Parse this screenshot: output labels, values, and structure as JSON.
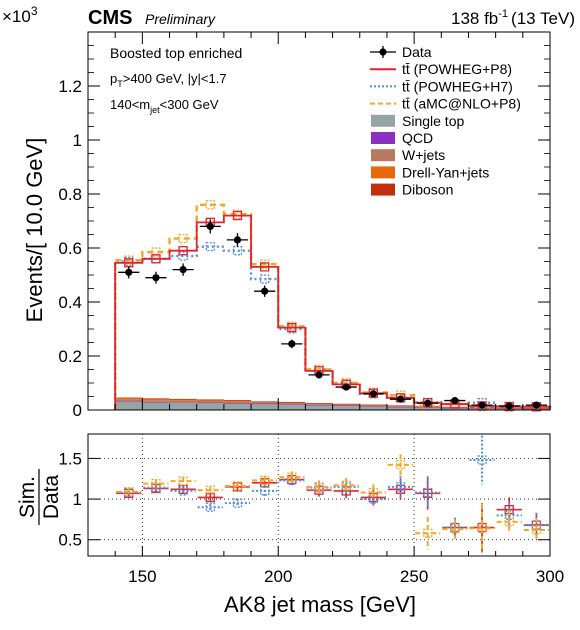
{
  "header": {
    "exponent_label": "×10",
    "exponent_power": "3",
    "experiment": "CMS",
    "status": "Preliminary",
    "lumi": "138 fb",
    "lumi_power": "-1",
    "energy": "(13 TeV)"
  },
  "annotations": {
    "line1": "Boosted top enriched",
    "line2_a": "p",
    "line2_sub": "T",
    "line2_b": ">400 GeV, |y|<1.7",
    "line3_a": "140<m",
    "line3_sub": "jet",
    "line3_b": "<300 GeV"
  },
  "legend": [
    {
      "label": "Data",
      "style": "data",
      "color": "#000000"
    },
    {
      "label": "tt̄ (POWHEG+P8)",
      "style": "line",
      "color": "#e0242f"
    },
    {
      "label": "tt̄ (POWHEG+H7)",
      "style": "dotted",
      "color": "#4a90e2"
    },
    {
      "label": "tt̄ (aMC@NLO+P8)",
      "style": "dashed",
      "color": "#f5a623"
    },
    {
      "label": "Single top",
      "style": "fill",
      "color": "#95a5a6"
    },
    {
      "label": "QCD",
      "style": "fill",
      "color": "#8e2fc4"
    },
    {
      "label": "W+jets",
      "style": "fill",
      "color": "#b87a5f"
    },
    {
      "label": "Drell-Yan+jets",
      "style": "fill",
      "color": "#e8680c"
    },
    {
      "label": "Diboson",
      "style": "fill",
      "color": "#c0300f"
    }
  ],
  "chart_data": [
    {
      "type": "bar",
      "title": "",
      "xlabel": "AK8 jet mass [GeV]",
      "ylabel": "Events/[ 10.0 GeV]",
      "xlim": [
        130,
        300
      ],
      "ylim": [
        0,
        1.4
      ],
      "y_scale_note": "×10^3",
      "x_ticks": [
        150,
        200,
        250,
        300
      ],
      "y_ticks": [
        0,
        0.2,
        0.4,
        0.6,
        0.8,
        1,
        1.2
      ],
      "y_tick_labels": [
        "0",
        "0.2",
        "0.4",
        "0.6",
        "0.8",
        "1",
        "1.2"
      ],
      "bin_edges": [
        140,
        150,
        160,
        170,
        180,
        190,
        200,
        210,
        220,
        230,
        240,
        250,
        260,
        270,
        280,
        290,
        300
      ],
      "series": [
        {
          "name": "Data",
          "values": [
            0.51,
            0.49,
            0.52,
            0.68,
            0.63,
            0.44,
            0.245,
            0.13,
            0.085,
            0.06,
            0.04,
            0.025,
            0.035,
            0.018,
            0.015,
            0.018
          ]
        },
        {
          "name": "tt̄ (POWHEG+P8)",
          "values": [
            0.545,
            0.56,
            0.59,
            0.695,
            0.72,
            0.53,
            0.305,
            0.145,
            0.095,
            0.062,
            0.045,
            0.027,
            0.022,
            0.015,
            0.013,
            0.012
          ]
        },
        {
          "name": "tt̄ (POWHEG+H7)",
          "values": [
            0.55,
            0.56,
            0.57,
            0.605,
            0.59,
            0.485,
            0.3,
            0.15,
            0.1,
            0.06,
            0.045,
            0.028,
            0.022,
            0.027,
            0.012,
            0.012
          ]
        },
        {
          "name": "tt̄ (aMC@NLO+P8)",
          "values": [
            0.555,
            0.585,
            0.635,
            0.76,
            0.725,
            0.54,
            0.31,
            0.15,
            0.1,
            0.065,
            0.055,
            0.015,
            0.022,
            0.012,
            0.011,
            0.012
          ]
        },
        {
          "name": "Single top",
          "values": [
            0.03,
            0.028,
            0.027,
            0.026,
            0.024,
            0.022,
            0.02,
            0.018,
            0.016,
            0.013,
            0.011,
            0.009,
            0.007,
            0.006,
            0.005,
            0.004
          ]
        },
        {
          "name": "QCD",
          "values": [
            0.002,
            0.002,
            0.002,
            0.002,
            0.002,
            0.002,
            0.002,
            0.001,
            0.001,
            0.001,
            0.001,
            0.001,
            0.001,
            0.001,
            0.001,
            0.001
          ]
        },
        {
          "name": "W+jets",
          "values": [
            0.006,
            0.006,
            0.005,
            0.005,
            0.005,
            0.004,
            0.004,
            0.004,
            0.003,
            0.003,
            0.003,
            0.002,
            0.002,
            0.002,
            0.002,
            0.001
          ]
        },
        {
          "name": "Drell-Yan+jets",
          "values": [
            0.006,
            0.005,
            0.005,
            0.004,
            0.004,
            0.003,
            0.003,
            0.002,
            0.002,
            0.002,
            0.001,
            0.001,
            0.001,
            0.001,
            0.001,
            0.001
          ]
        },
        {
          "name": "Diboson",
          "values": [
            0.002,
            0.002,
            0.002,
            0.002,
            0.002,
            0.001,
            0.001,
            0.001,
            0.001,
            0.001,
            0.001,
            0.001,
            0.001,
            0.001,
            0.001,
            0.001
          ]
        }
      ]
    },
    {
      "type": "scatter",
      "title": "",
      "xlabel": "AK8 jet mass [GeV]",
      "ylabel_num": "Sim.",
      "ylabel_den": "Data",
      "xlim": [
        130,
        300
      ],
      "ylim": [
        0.3,
        1.8
      ],
      "x_ticks": [
        150,
        200,
        250,
        300
      ],
      "y_ticks": [
        0.5,
        1,
        1.5
      ],
      "y_tick_labels": [
        "0.5",
        "1",
        "1.5"
      ],
      "bin_edges": [
        140,
        150,
        160,
        170,
        180,
        190,
        200,
        210,
        220,
        230,
        240,
        250,
        260,
        270,
        280,
        290,
        300
      ],
      "series": [
        {
          "name": "tt̄ (POWHEG+P8)",
          "values": [
            1.07,
            1.13,
            1.12,
            1.02,
            1.15,
            1.2,
            1.24,
            1.11,
            1.1,
            1.02,
            1.12,
            1.07,
            0.65,
            0.65,
            0.87,
            0.68
          ]
        },
        {
          "name": "tt̄ (POWHEG+H7)",
          "values": [
            1.08,
            1.14,
            1.1,
            0.9,
            0.95,
            1.1,
            1.23,
            1.14,
            1.15,
            1.0,
            1.15,
            1.08,
            0.65,
            1.48,
            0.8,
            0.68
          ]
        },
        {
          "name": "tt̄ (aMC@NLO+P8)",
          "values": [
            1.09,
            1.19,
            1.22,
            1.11,
            1.16,
            1.23,
            1.27,
            1.15,
            1.17,
            1.08,
            1.42,
            0.58,
            0.63,
            0.64,
            0.72,
            0.62
          ]
        }
      ],
      "errors": [
        0.04,
        0.05,
        0.05,
        0.04,
        0.05,
        0.06,
        0.07,
        0.08,
        0.09,
        0.1,
        0.13,
        0.2,
        0.12,
        0.3,
        0.15,
        0.15
      ],
      "reference_line": 1
    }
  ]
}
